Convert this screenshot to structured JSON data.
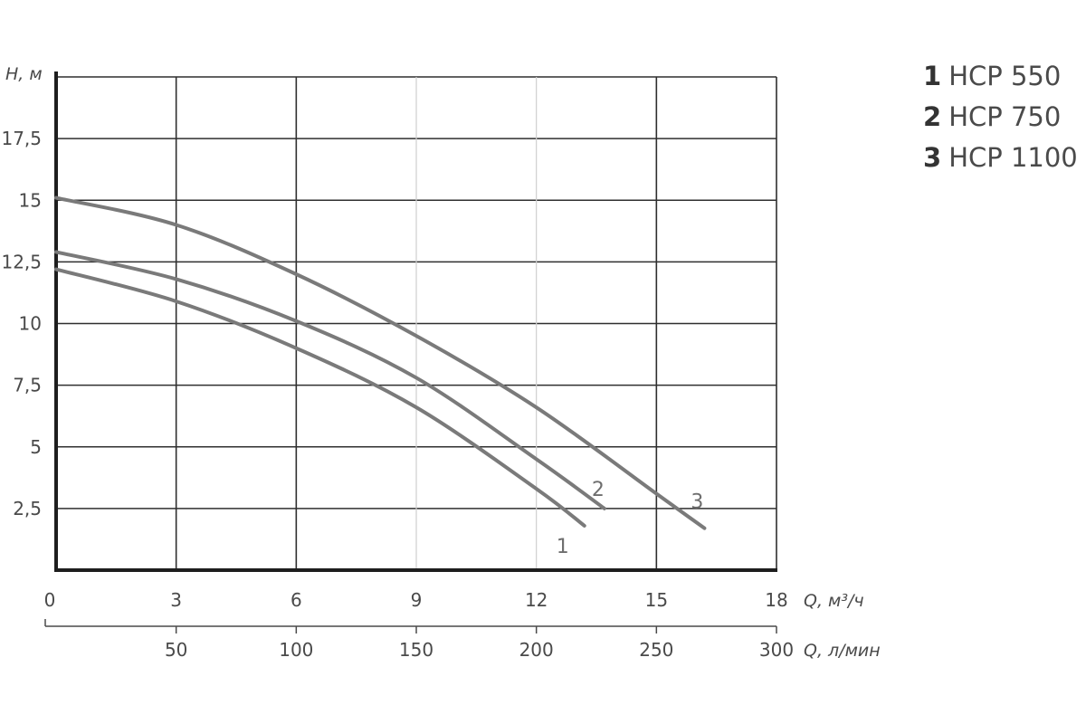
{
  "chart_data": {
    "type": "line",
    "ylabel": "H, м",
    "xlabel": "Q, м³/ч",
    "x2label": "Q, л/мин",
    "xlim": [
      0,
      18
    ],
    "ylim": [
      0,
      20
    ],
    "x_ticks": [
      0,
      3,
      6,
      9,
      12,
      15,
      18
    ],
    "x_tick_labels": [
      "0",
      "3",
      "6",
      "9",
      "12",
      "15",
      "18"
    ],
    "x2_ticks": [
      50,
      100,
      150,
      200,
      250,
      300
    ],
    "x2_tick_labels": [
      "50",
      "100",
      "150",
      "200",
      "250",
      "300"
    ],
    "y_ticks": [
      2.5,
      5,
      7.5,
      10,
      12.5,
      15,
      17.5
    ],
    "y_tick_labels": [
      "2,5",
      "5",
      "7,5",
      "10",
      "12,5",
      "15",
      "17,5"
    ],
    "grid": true,
    "legend_position": "top-right",
    "series": [
      {
        "label": "1",
        "name": "HCP 550",
        "x": [
          0,
          3,
          6,
          9,
          12,
          13.2
        ],
        "y": [
          12.2,
          10.9,
          9.0,
          6.6,
          3.3,
          1.8
        ]
      },
      {
        "label": "2",
        "name": "HCP 750",
        "x": [
          0,
          3,
          6,
          9,
          12,
          13.7
        ],
        "y": [
          12.9,
          11.8,
          10.1,
          7.8,
          4.5,
          2.5
        ]
      },
      {
        "label": "3",
        "name": "HCP 1100",
        "x": [
          0,
          3,
          6,
          9,
          12,
          15,
          16.2
        ],
        "y": [
          15.1,
          14.0,
          12.0,
          9.5,
          6.6,
          3.1,
          1.7
        ]
      }
    ]
  }
}
